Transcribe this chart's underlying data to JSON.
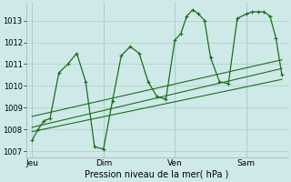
{
  "title": "Pression niveau de la mer( hPa )",
  "background_color": "#cfe9e9",
  "grid_color": "#b0d4c8",
  "line_color": "#1a6e1a",
  "x_ticks_labels": [
    "Jeu",
    "Dim",
    "Ven",
    "Sam"
  ],
  "x_ticks_pos": [
    0,
    48,
    96,
    144
  ],
  "xlim": [
    -4,
    172
  ],
  "ylim": [
    1006.7,
    1013.8
  ],
  "yticks": [
    1007,
    1008,
    1009,
    1010,
    1011,
    1012,
    1013
  ],
  "series1_x": [
    0,
    4,
    8,
    12,
    18,
    24,
    30,
    36,
    42,
    48,
    54,
    60,
    66,
    72,
    78,
    84,
    90,
    96,
    100,
    104,
    108,
    112,
    116,
    120,
    126,
    132,
    138,
    144,
    148,
    152,
    156,
    160,
    164,
    168
  ],
  "series1_y": [
    1007.5,
    1008.0,
    1008.4,
    1008.5,
    1010.6,
    1011.0,
    1011.5,
    1010.2,
    1007.2,
    1007.1,
    1009.3,
    1011.4,
    1011.8,
    1011.5,
    1010.2,
    1009.5,
    1009.4,
    1012.1,
    1012.4,
    1013.2,
    1013.5,
    1013.3,
    1013.0,
    1011.3,
    1010.2,
    1010.1,
    1013.1,
    1013.3,
    1013.4,
    1013.4,
    1013.4,
    1013.2,
    1012.2,
    1010.5
  ],
  "trend1_x": [
    0,
    168
  ],
  "trend1_y": [
    1008.1,
    1010.8
  ],
  "trend2_x": [
    0,
    168
  ],
  "trend2_y": [
    1007.9,
    1010.3
  ],
  "trend3_x": [
    0,
    168
  ],
  "trend3_y": [
    1008.6,
    1011.2
  ]
}
